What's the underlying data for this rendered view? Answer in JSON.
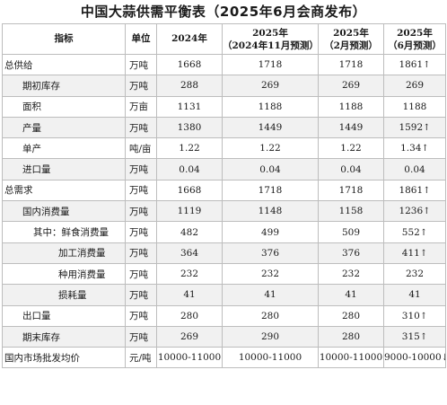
{
  "title": "中国大蒜供需平衡表（2025年6月会商发布）",
  "headers": [
    {
      "line1": "指标",
      "line2": ""
    },
    {
      "line1": "单位",
      "line2": ""
    },
    {
      "line1": "2024年",
      "line2": ""
    },
    {
      "line1": "2025年",
      "line2": "（2024年11月预测）"
    },
    {
      "line1": "2025年",
      "line2": "（2月预测）"
    },
    {
      "line1": "2025年",
      "line2": "（6月预测）"
    }
  ],
  "rows": [
    {
      "name": "总供给",
      "unit": "万吨",
      "y2024": "1668",
      "nov": "1718",
      "feb": "1718",
      "jun": "1861",
      "arrow": "↑",
      "indent": 2
    },
    {
      "name": "期初库存",
      "unit": "万吨",
      "y2024": "288",
      "nov": "269",
      "feb": "269",
      "jun": "269",
      "arrow": "",
      "indent": 22
    },
    {
      "name": "面积",
      "unit": "万亩",
      "y2024": "1131",
      "nov": "1188",
      "feb": "1188",
      "jun": "1188",
      "arrow": "",
      "indent": 22
    },
    {
      "name": "产量",
      "unit": "万吨",
      "y2024": "1380",
      "nov": "1449",
      "feb": "1449",
      "jun": "1592",
      "arrow": "↑",
      "indent": 22
    },
    {
      "name": "单产",
      "unit": "吨/亩",
      "y2024": "1.22",
      "nov": "1.22",
      "feb": "1.22",
      "jun": "1.34",
      "arrow": "↑",
      "indent": 22
    },
    {
      "name": "进口量",
      "unit": "万吨",
      "y2024": "0.04",
      "nov": "0.04",
      "feb": "0.04",
      "jun": "0.04",
      "arrow": "",
      "indent": 22
    },
    {
      "name": "总需求",
      "unit": "万吨",
      "y2024": "1668",
      "nov": "1718",
      "feb": "1718",
      "jun": "1861",
      "arrow": "↑",
      "indent": 2
    },
    {
      "name": "国内消费量",
      "unit": "万吨",
      "y2024": "1119",
      "nov": "1148",
      "feb": "1158",
      "jun": "1236",
      "arrow": "↑",
      "indent": 22
    },
    {
      "name": "其中：鲜食消费量",
      "unit": "万吨",
      "y2024": "482",
      "nov": "499",
      "feb": "509",
      "jun": "552",
      "arrow": "↑",
      "indent": 34
    },
    {
      "name": "加工消费量",
      "unit": "万吨",
      "y2024": "364",
      "nov": "376",
      "feb": "376",
      "jun": "411",
      "arrow": "↑",
      "indent": 62
    },
    {
      "name": "种用消费量",
      "unit": "万吨",
      "y2024": "232",
      "nov": "232",
      "feb": "232",
      "jun": "232",
      "arrow": "",
      "indent": 62
    },
    {
      "name": "损耗量",
      "unit": "万吨",
      "y2024": "41",
      "nov": "41",
      "feb": "41",
      "jun": "41",
      "arrow": "",
      "indent": 62
    },
    {
      "name": "出口量",
      "unit": "万吨",
      "y2024": "280",
      "nov": "280",
      "feb": "280",
      "jun": "310",
      "arrow": "↑",
      "indent": 22
    },
    {
      "name": "期末库存",
      "unit": "万吨",
      "y2024": "269",
      "nov": "290",
      "feb": "280",
      "jun": "315",
      "arrow": "↑",
      "indent": 22
    },
    {
      "name": "国内市场批发均价",
      "unit": "元/吨",
      "y2024": "10000-11000",
      "nov": "10000-11000",
      "feb": "10000-11000",
      "jun": "9000-10000",
      "arrow": "↓",
      "indent": 2
    }
  ]
}
